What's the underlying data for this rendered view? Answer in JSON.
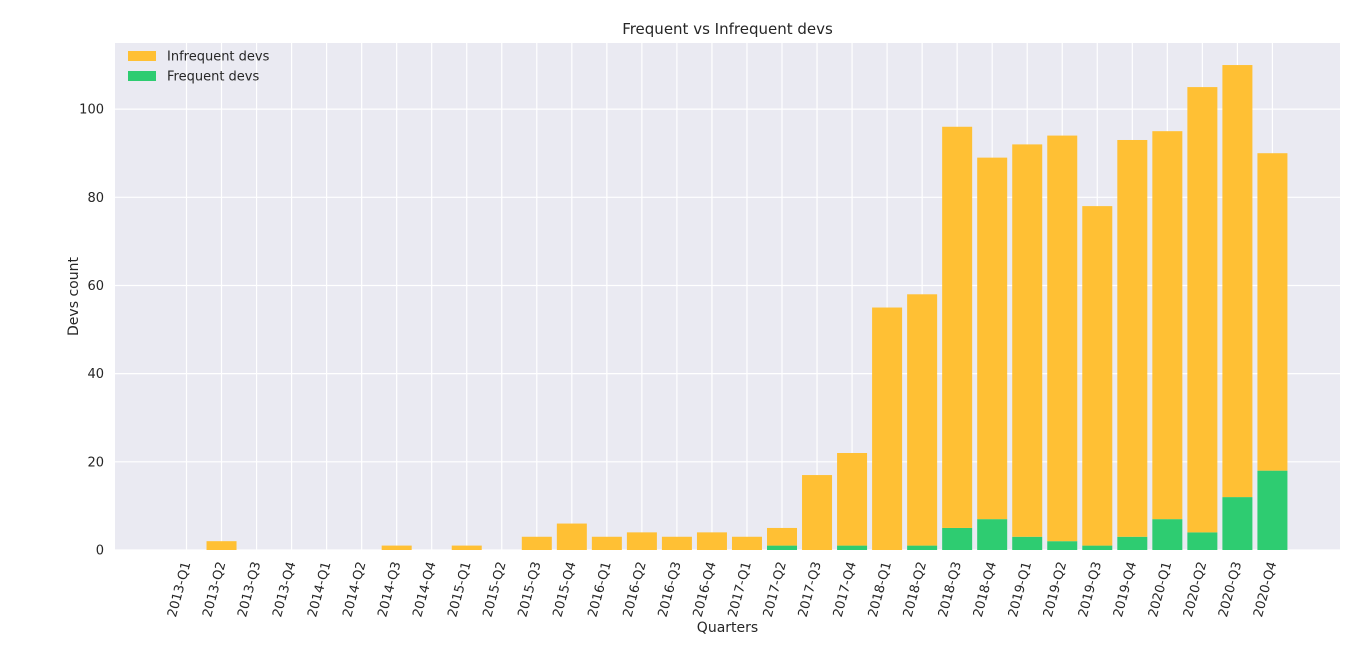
{
  "chart_data": {
    "type": "bar",
    "stacked": true,
    "title": "Frequent vs Infrequent devs",
    "xlabel": "Quarters",
    "ylabel": "Devs count",
    "ylim": [
      0,
      115
    ],
    "yticks": [
      0,
      20,
      40,
      60,
      80,
      100
    ],
    "grid": true,
    "legend_position": "top-left",
    "categories": [
      "2013-Q1",
      "2013-Q2",
      "2013-Q3",
      "2013-Q4",
      "2014-Q1",
      "2014-Q2",
      "2014-Q3",
      "2014-Q4",
      "2015-Q1",
      "2015-Q2",
      "2015-Q3",
      "2015-Q4",
      "2016-Q1",
      "2016-Q2",
      "2016-Q3",
      "2016-Q4",
      "2017-Q1",
      "2017-Q2",
      "2017-Q3",
      "2017-Q4",
      "2018-Q1",
      "2018-Q2",
      "2018-Q3",
      "2018-Q4",
      "2019-Q1",
      "2019-Q2",
      "2019-Q3",
      "2019-Q4",
      "2020-Q1",
      "2020-Q2",
      "2020-Q3",
      "2020-Q4"
    ],
    "series": [
      {
        "name": "Infrequent devs",
        "color": "#FFC034",
        "values": [
          0,
          2,
          0,
          0,
          0,
          0,
          1,
          0,
          1,
          0,
          3,
          6,
          3,
          4,
          3,
          4,
          3,
          4,
          17,
          21,
          55,
          57,
          91,
          82,
          89,
          92,
          77,
          90,
          88,
          101,
          98,
          72
        ]
      },
      {
        "name": "Frequent devs",
        "color": "#2ECC71",
        "values": [
          0,
          0,
          0,
          0,
          0,
          0,
          0,
          0,
          0,
          0,
          0,
          0,
          0,
          0,
          0,
          0,
          0,
          1,
          0,
          1,
          0,
          1,
          5,
          7,
          3,
          2,
          1,
          3,
          7,
          4,
          12,
          18
        ]
      }
    ]
  },
  "colors": {
    "plot_background": "#EAEAF2",
    "grid": "#FFFFFF"
  }
}
